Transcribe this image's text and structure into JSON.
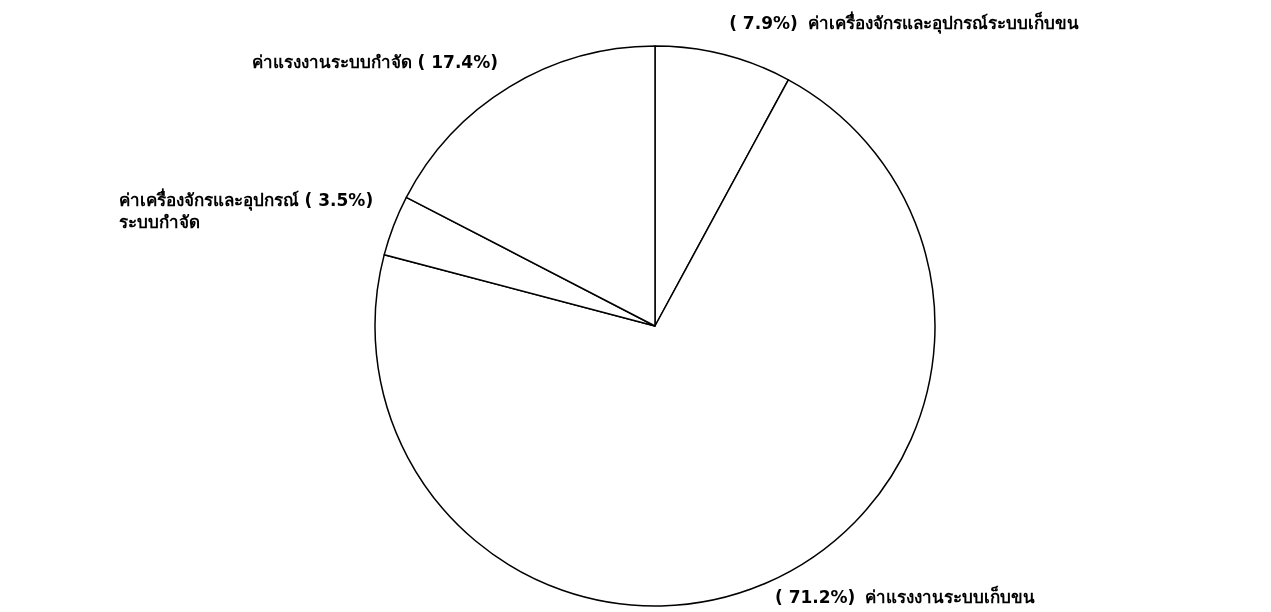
{
  "chart_data": {
    "type": "pie",
    "categories": [
      "ค่าเครื่องจักรและอุปกรณ์ระบบเก็บขน",
      "ค่าแรงงานระบบเก็บขน",
      "ค่าเครื่องจักรและอุปกรณ์\nระบบกำจัด",
      "ค่าแรงงานระบบกำจัด"
    ],
    "values": [
      7.9,
      71.2,
      3.5,
      17.4
    ],
    "value_labels": [
      "( 7.9%)",
      "( 71.2%)",
      "( 3.5%)",
      "( 17.4%)"
    ],
    "colors": [
      "#ffffff",
      "#ffffff",
      "#ffffff",
      "#ffffff"
    ]
  }
}
